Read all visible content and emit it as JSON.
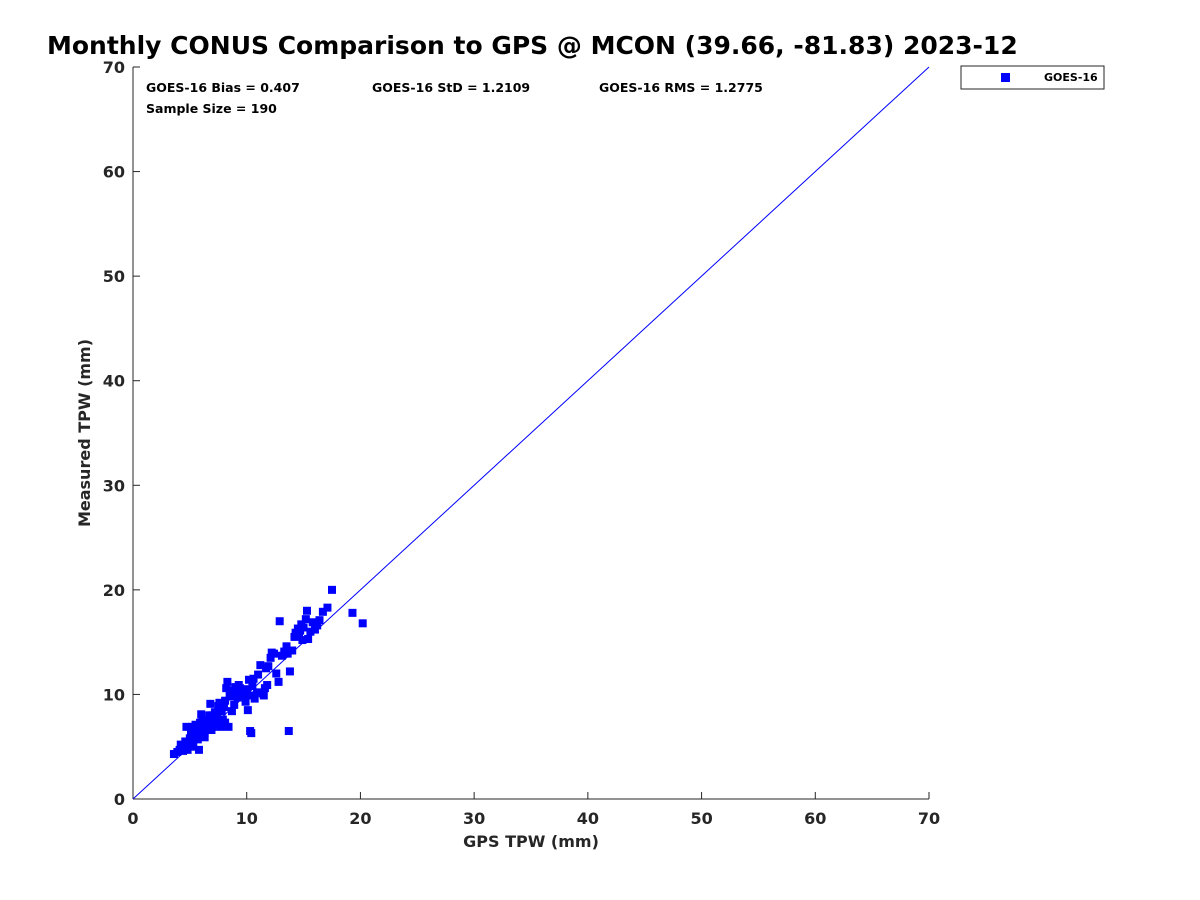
{
  "title": "Monthly CONUS Comparison to GPS @ MCON (39.66, -81.83) 2023-12",
  "stats": {
    "bias": "GOES-16 Bias = 0.407",
    "std": "GOES-16 StD = 1.2109",
    "rms": "GOES-16 RMS = 1.2775",
    "sample_size": "Sample Size = 190"
  },
  "legend": {
    "label": "GOES-16"
  },
  "colors": {
    "series": "#0000ff",
    "one_to_one": "#0000ff",
    "axis": "#262626"
  },
  "chart_data": {
    "type": "scatter",
    "title": "Monthly CONUS Comparison to GPS @ MCON (39.66, -81.83) 2023-12",
    "xlabel": "GPS TPW (mm)",
    "ylabel": "Measured TPW (mm)",
    "xlim": [
      0,
      70
    ],
    "ylim": [
      0,
      70
    ],
    "xticks": [
      "0",
      "10",
      "20",
      "30",
      "40",
      "50",
      "60",
      "70"
    ],
    "yticks": [
      "0",
      "10",
      "20",
      "30",
      "40",
      "50",
      "60",
      "70"
    ],
    "grid": false,
    "legend_position": "outside top-right",
    "one_to_one_line": true,
    "series": [
      {
        "name": "GOES-16",
        "points": [
          [
            3.6,
            4.3
          ],
          [
            3.9,
            4.5
          ],
          [
            4.1,
            4.7
          ],
          [
            4.3,
            4.9
          ],
          [
            4.2,
            5.2
          ],
          [
            4.5,
            5.0
          ],
          [
            4.6,
            5.5
          ],
          [
            4.4,
            4.6
          ],
          [
            4.8,
            4.7
          ],
          [
            4.9,
            5.3
          ],
          [
            4.7,
            6.9
          ],
          [
            5.0,
            5.8
          ],
          [
            5.2,
            5.5
          ],
          [
            5.1,
            6.2
          ],
          [
            5.3,
            5.0
          ],
          [
            5.4,
            6.4
          ],
          [
            5.5,
            7.1
          ],
          [
            5.2,
            6.9
          ],
          [
            5.6,
            6.0
          ],
          [
            5.7,
            5.7
          ],
          [
            5.8,
            4.7
          ],
          [
            5.6,
            6.7
          ],
          [
            5.9,
            7.3
          ],
          [
            6.0,
            6.5
          ],
          [
            6.1,
            6.1
          ],
          [
            6.0,
            8.1
          ],
          [
            6.2,
            7.0
          ],
          [
            6.3,
            6.3
          ],
          [
            6.4,
            7.5
          ],
          [
            6.5,
            6.8
          ],
          [
            6.3,
            5.9
          ],
          [
            6.6,
            7.2
          ],
          [
            6.7,
            8.0
          ],
          [
            6.8,
            9.1
          ],
          [
            6.9,
            6.6
          ],
          [
            7.0,
            7.4
          ],
          [
            7.1,
            7.9
          ],
          [
            7.0,
            6.9
          ],
          [
            7.2,
            8.3
          ],
          [
            7.3,
            7.1
          ],
          [
            7.4,
            7.7
          ],
          [
            7.5,
            8.9
          ],
          [
            7.6,
            9.2
          ],
          [
            7.7,
            6.9
          ],
          [
            7.8,
            8.4
          ],
          [
            7.9,
            7.6
          ],
          [
            8.0,
            8.8
          ],
          [
            8.1,
            7.3
          ],
          [
            8.2,
            10.6
          ],
          [
            8.3,
            11.2
          ],
          [
            8.1,
            9.4
          ],
          [
            8.4,
            6.9
          ],
          [
            8.5,
            10.1
          ],
          [
            8.6,
            9.8
          ],
          [
            8.7,
            8.4
          ],
          [
            8.8,
            10.4
          ],
          [
            8.9,
            9.0
          ],
          [
            9.0,
            10.7
          ],
          [
            9.1,
            10.2
          ],
          [
            9.2,
            9.7
          ],
          [
            9.3,
            10.9
          ],
          [
            9.5,
            10.3
          ],
          [
            9.7,
            9.9
          ],
          [
            9.9,
            9.3
          ],
          [
            10.0,
            10.5
          ],
          [
            10.1,
            8.5
          ],
          [
            10.2,
            11.4
          ],
          [
            10.3,
            6.5
          ],
          [
            10.4,
            6.3
          ],
          [
            10.3,
            9.9
          ],
          [
            10.5,
            10.8
          ],
          [
            10.6,
            11.5
          ],
          [
            10.7,
            9.6
          ],
          [
            10.9,
            10.2
          ],
          [
            11.0,
            11.9
          ],
          [
            11.2,
            12.8
          ],
          [
            11.4,
            10.1
          ],
          [
            11.5,
            9.9
          ],
          [
            11.6,
            10.6
          ],
          [
            11.8,
            10.9
          ],
          [
            11.9,
            12.7
          ],
          [
            12.1,
            13.5
          ],
          [
            12.2,
            14.0
          ],
          [
            12.4,
            13.9
          ],
          [
            12.6,
            12.0
          ],
          [
            12.8,
            11.2
          ],
          [
            12.9,
            17.0
          ],
          [
            13.1,
            13.7
          ],
          [
            13.3,
            14.1
          ],
          [
            13.5,
            14.6
          ],
          [
            13.6,
            13.9
          ],
          [
            13.8,
            12.2
          ],
          [
            13.7,
            6.5
          ],
          [
            14.0,
            14.2
          ],
          [
            14.2,
            15.5
          ],
          [
            14.3,
            15.9
          ],
          [
            14.5,
            16.3
          ],
          [
            14.6,
            15.8
          ],
          [
            14.8,
            16.7
          ],
          [
            14.9,
            15.2
          ],
          [
            15.0,
            16.4
          ],
          [
            15.2,
            17.2
          ],
          [
            15.3,
            18.0
          ],
          [
            15.4,
            15.3
          ],
          [
            15.6,
            16.0
          ],
          [
            15.8,
            16.9
          ],
          [
            16.0,
            16.2
          ],
          [
            16.2,
            16.6
          ],
          [
            16.4,
            17.1
          ],
          [
            16.7,
            17.9
          ],
          [
            17.1,
            18.3
          ],
          [
            17.5,
            20.0
          ],
          [
            19.3,
            17.8
          ],
          [
            20.2,
            16.8
          ],
          [
            5.3,
            6.6
          ],
          [
            6.1,
            7.6
          ],
          [
            7.0,
            8.0
          ],
          [
            8.6,
            10.0
          ],
          [
            9.4,
            10.6
          ],
          [
            11.7,
            12.5
          ],
          [
            14.7,
            16.1
          ]
        ]
      }
    ]
  }
}
